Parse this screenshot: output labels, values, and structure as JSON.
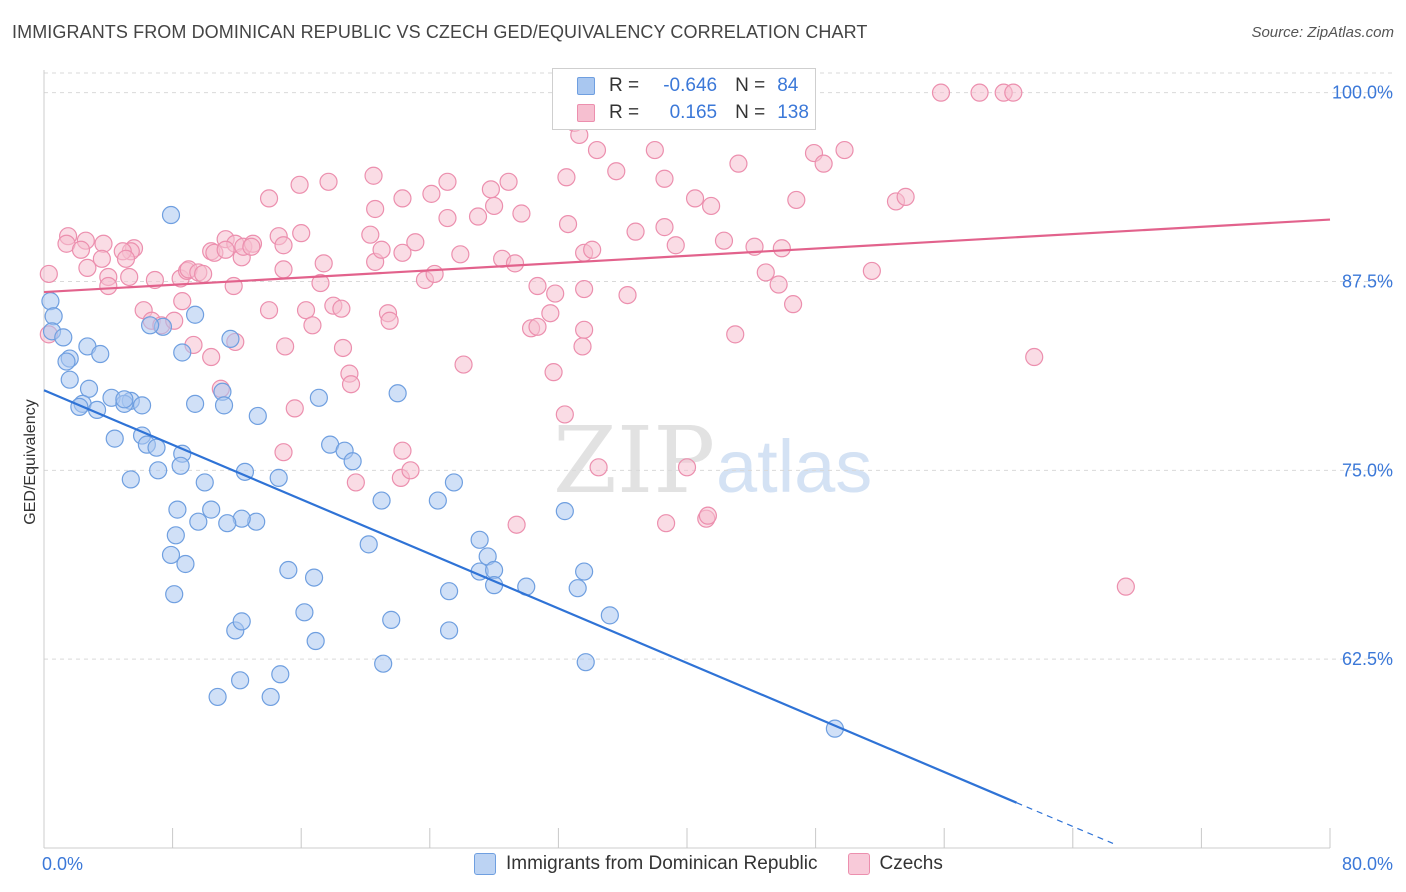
{
  "title": "IMMIGRANTS FROM DOMINICAN REPUBLIC VS CZECH GED/EQUIVALENCY CORRELATION CHART",
  "source": "Source: ZipAtlas.com",
  "legend": {
    "row1": {
      "r_label": "R =",
      "r_value": "-0.646",
      "n_label": "N =",
      "n_value": "84"
    },
    "row2": {
      "r_label": "R =",
      "r_value": "0.165",
      "n_label": "N =",
      "n_value": "138"
    }
  },
  "bottom_legend": {
    "series1": "Immigrants from Dominican Republic",
    "series2": "Czechs"
  },
  "colors": {
    "blue_fill": "#a9c7f0",
    "blue_stroke": "#6f9fe0",
    "blue_line": "#2f73d6",
    "pink_fill": "#f6bfd0",
    "pink_stroke": "#ec8fae",
    "pink_line": "#e2628c",
    "tick_label": "#3b78d8",
    "grid": "#d9d9d9"
  },
  "watermark": {
    "zip": "ZIP",
    "atlas": "atlas"
  },
  "chart_data": {
    "type": "scatter",
    "ylabel": "GED/Equivalency",
    "xlim": [
      0,
      80
    ],
    "ylim": [
      50,
      101.5
    ],
    "x_tick_labels": [
      "0.0%",
      "80.0%"
    ],
    "y_ticks": [
      62.5,
      75.0,
      87.5,
      100.0
    ],
    "y_tick_labels": [
      "62.5%",
      "75.0%",
      "87.5%",
      "100.0%"
    ],
    "grid": true,
    "series": [
      {
        "name": "Immigrants from Dominican Republic",
        "r": -0.646,
        "n": 84,
        "trend": {
          "x0": 0,
          "y0": 80.3,
          "x1": 60.5,
          "y1": 53.0,
          "dash_to_x": 66.5,
          "dash_to_y": 50.3
        },
        "points": [
          [
            0.4,
            86.2
          ],
          [
            0.6,
            85.2
          ],
          [
            0.5,
            84.2
          ],
          [
            1.2,
            83.8
          ],
          [
            1.6,
            82.4
          ],
          [
            1.4,
            82.2
          ],
          [
            2.7,
            83.2
          ],
          [
            3.5,
            82.7
          ],
          [
            2.8,
            80.4
          ],
          [
            2.4,
            79.4
          ],
          [
            3.3,
            79.0
          ],
          [
            2.2,
            79.2
          ],
          [
            4.2,
            79.8
          ],
          [
            5.4,
            79.6
          ],
          [
            6.1,
            79.3
          ],
          [
            5.0,
            79.4
          ],
          [
            7.4,
            84.5
          ],
          [
            6.6,
            84.6
          ],
          [
            8.6,
            82.8
          ],
          [
            9.4,
            85.3
          ],
          [
            11.1,
            80.2
          ],
          [
            11.2,
            79.3
          ],
          [
            9.4,
            79.4
          ],
          [
            11.6,
            83.7
          ],
          [
            6.1,
            77.3
          ],
          [
            6.4,
            76.7
          ],
          [
            7.0,
            76.5
          ],
          [
            8.6,
            76.1
          ],
          [
            4.4,
            77.1
          ],
          [
            7.1,
            75.0
          ],
          [
            5.4,
            74.4
          ],
          [
            8.5,
            75.3
          ],
          [
            10.0,
            74.2
          ],
          [
            10.4,
            72.4
          ],
          [
            9.6,
            71.6
          ],
          [
            8.3,
            72.4
          ],
          [
            8.2,
            70.7
          ],
          [
            7.9,
            69.4
          ],
          [
            8.8,
            68.8
          ],
          [
            8.1,
            66.8
          ],
          [
            12.5,
            74.9
          ],
          [
            13.3,
            78.6
          ],
          [
            14.6,
            74.5
          ],
          [
            13.2,
            71.6
          ],
          [
            12.3,
            71.8
          ],
          [
            11.4,
            71.5
          ],
          [
            15.2,
            68.4
          ],
          [
            16.8,
            67.9
          ],
          [
            16.2,
            65.6
          ],
          [
            16.9,
            63.7
          ],
          [
            11.9,
            64.4
          ],
          [
            12.3,
            65.0
          ],
          [
            10.8,
            60.0
          ],
          [
            12.2,
            61.1
          ],
          [
            14.7,
            61.5
          ],
          [
            14.1,
            60.0
          ],
          [
            17.1,
            79.8
          ],
          [
            17.8,
            76.7
          ],
          [
            18.7,
            76.3
          ],
          [
            19.2,
            75.6
          ],
          [
            20.2,
            70.1
          ],
          [
            21.0,
            73.0
          ],
          [
            22.0,
            80.1
          ],
          [
            21.6,
            65.1
          ],
          [
            21.1,
            62.2
          ],
          [
            24.5,
            73.0
          ],
          [
            25.5,
            74.2
          ],
          [
            25.2,
            64.4
          ],
          [
            25.2,
            67.0
          ],
          [
            27.1,
            70.4
          ],
          [
            27.1,
            68.3
          ],
          [
            27.6,
            69.3
          ],
          [
            28.0,
            68.4
          ],
          [
            28.0,
            67.4
          ],
          [
            30.0,
            67.3
          ],
          [
            32.4,
            72.3
          ],
          [
            33.2,
            67.2
          ],
          [
            33.6,
            68.3
          ],
          [
            35.2,
            65.4
          ],
          [
            33.7,
            62.3
          ],
          [
            49.2,
            57.9
          ],
          [
            7.9,
            91.9
          ],
          [
            5.0,
            79.7
          ],
          [
            1.6,
            81.0
          ]
        ]
      },
      {
        "name": "Czechs",
        "r": 0.165,
        "n": 138,
        "trend": {
          "x0": 0,
          "y0": 86.8,
          "x1": 80,
          "y1": 91.6
        },
        "points": [
          [
            0.3,
            88.0
          ],
          [
            0.3,
            84.0
          ],
          [
            1.5,
            90.5
          ],
          [
            1.4,
            90.0
          ],
          [
            2.6,
            90.2
          ],
          [
            2.3,
            89.6
          ],
          [
            3.7,
            90.0
          ],
          [
            3.6,
            89.0
          ],
          [
            2.7,
            88.4
          ],
          [
            4.0,
            87.8
          ],
          [
            4.0,
            87.2
          ],
          [
            5.6,
            89.7
          ],
          [
            5.4,
            89.5
          ],
          [
            4.9,
            89.5
          ],
          [
            5.1,
            89.0
          ],
          [
            5.3,
            87.8
          ],
          [
            6.9,
            87.6
          ],
          [
            6.2,
            85.6
          ],
          [
            6.7,
            84.9
          ],
          [
            7.3,
            84.6
          ],
          [
            8.1,
            84.9
          ],
          [
            8.6,
            86.2
          ],
          [
            8.5,
            87.7
          ],
          [
            8.9,
            88.2
          ],
          [
            9.0,
            88.3
          ],
          [
            9.6,
            88.1
          ],
          [
            9.9,
            88.0
          ],
          [
            10.4,
            89.5
          ],
          [
            10.6,
            89.4
          ],
          [
            11.8,
            87.2
          ],
          [
            11.3,
            90.3
          ],
          [
            11.9,
            90.0
          ],
          [
            12.3,
            89.1
          ],
          [
            12.4,
            89.8
          ],
          [
            13.0,
            90.0
          ],
          [
            12.9,
            89.8
          ],
          [
            11.9,
            83.5
          ],
          [
            9.3,
            83.3
          ],
          [
            10.4,
            82.5
          ],
          [
            11.0,
            80.4
          ],
          [
            14.0,
            93.0
          ],
          [
            14.0,
            85.6
          ],
          [
            14.6,
            90.5
          ],
          [
            14.9,
            89.9
          ],
          [
            14.9,
            88.3
          ],
          [
            15.0,
            83.2
          ],
          [
            14.9,
            76.2
          ],
          [
            15.6,
            79.1
          ],
          [
            15.9,
            93.9
          ],
          [
            16.0,
            90.7
          ],
          [
            16.3,
            85.6
          ],
          [
            16.7,
            84.6
          ],
          [
            17.2,
            87.4
          ],
          [
            17.4,
            88.7
          ],
          [
            17.7,
            94.1
          ],
          [
            18.0,
            85.9
          ],
          [
            18.5,
            85.7
          ],
          [
            19.0,
            81.4
          ],
          [
            18.6,
            83.1
          ],
          [
            19.1,
            80.7
          ],
          [
            19.4,
            74.2
          ],
          [
            20.3,
            90.6
          ],
          [
            20.6,
            88.8
          ],
          [
            20.6,
            92.3
          ],
          [
            21.0,
            89.6
          ],
          [
            21.4,
            85.4
          ],
          [
            21.5,
            84.9
          ],
          [
            22.3,
            93.0
          ],
          [
            22.3,
            89.4
          ],
          [
            23.1,
            90.1
          ],
          [
            22.3,
            76.3
          ],
          [
            22.2,
            74.5
          ],
          [
            22.8,
            75.0
          ],
          [
            23.7,
            87.6
          ],
          [
            24.1,
            93.3
          ],
          [
            24.3,
            88.0
          ],
          [
            25.1,
            94.1
          ],
          [
            25.1,
            91.7
          ],
          [
            25.9,
            89.3
          ],
          [
            26.1,
            82.0
          ],
          [
            27.0,
            91.8
          ],
          [
            27.8,
            93.6
          ],
          [
            28.0,
            92.5
          ],
          [
            28.5,
            89.0
          ],
          [
            28.9,
            94.1
          ],
          [
            29.3,
            88.7
          ],
          [
            29.7,
            92.0
          ],
          [
            30.3,
            84.4
          ],
          [
            30.7,
            84.5
          ],
          [
            30.7,
            87.2
          ],
          [
            31.5,
            85.4
          ],
          [
            31.8,
            86.7
          ],
          [
            32.5,
            94.4
          ],
          [
            33.0,
            98.0
          ],
          [
            33.3,
            97.2
          ],
          [
            34.4,
            96.2
          ],
          [
            32.6,
            91.3
          ],
          [
            33.6,
            87.0
          ],
          [
            33.6,
            84.3
          ],
          [
            33.6,
            89.4
          ],
          [
            34.1,
            89.6
          ],
          [
            33.5,
            83.2
          ],
          [
            31.7,
            81.5
          ],
          [
            32.4,
            78.7
          ],
          [
            34.5,
            75.2
          ],
          [
            35.6,
            94.8
          ],
          [
            36.8,
            90.8
          ],
          [
            36.3,
            86.6
          ],
          [
            38.0,
            96.2
          ],
          [
            38.6,
            94.3
          ],
          [
            38.6,
            91.1
          ],
          [
            39.3,
            89.9
          ],
          [
            40.5,
            93.0
          ],
          [
            41.5,
            92.5
          ],
          [
            42.3,
            90.2
          ],
          [
            43.2,
            95.3
          ],
          [
            43.0,
            84.0
          ],
          [
            44.2,
            89.8
          ],
          [
            44.9,
            88.1
          ],
          [
            45.7,
            87.3
          ],
          [
            45.9,
            89.7
          ],
          [
            46.8,
            92.9
          ],
          [
            46.6,
            86.0
          ],
          [
            47.9,
            96.0
          ],
          [
            48.5,
            95.3
          ],
          [
            49.8,
            96.2
          ],
          [
            51.5,
            88.2
          ],
          [
            53.0,
            92.8
          ],
          [
            53.6,
            93.1
          ],
          [
            55.8,
            100.0
          ],
          [
            58.2,
            100.0
          ],
          [
            59.7,
            100.0
          ],
          [
            60.3,
            100.0
          ],
          [
            61.6,
            82.5
          ],
          [
            67.3,
            67.3
          ],
          [
            29.4,
            71.4
          ],
          [
            38.7,
            71.5
          ],
          [
            41.2,
            71.8
          ],
          [
            40.0,
            75.2
          ],
          [
            41.3,
            72.0
          ],
          [
            11.3,
            89.6
          ],
          [
            20.5,
            94.5
          ]
        ]
      }
    ]
  }
}
